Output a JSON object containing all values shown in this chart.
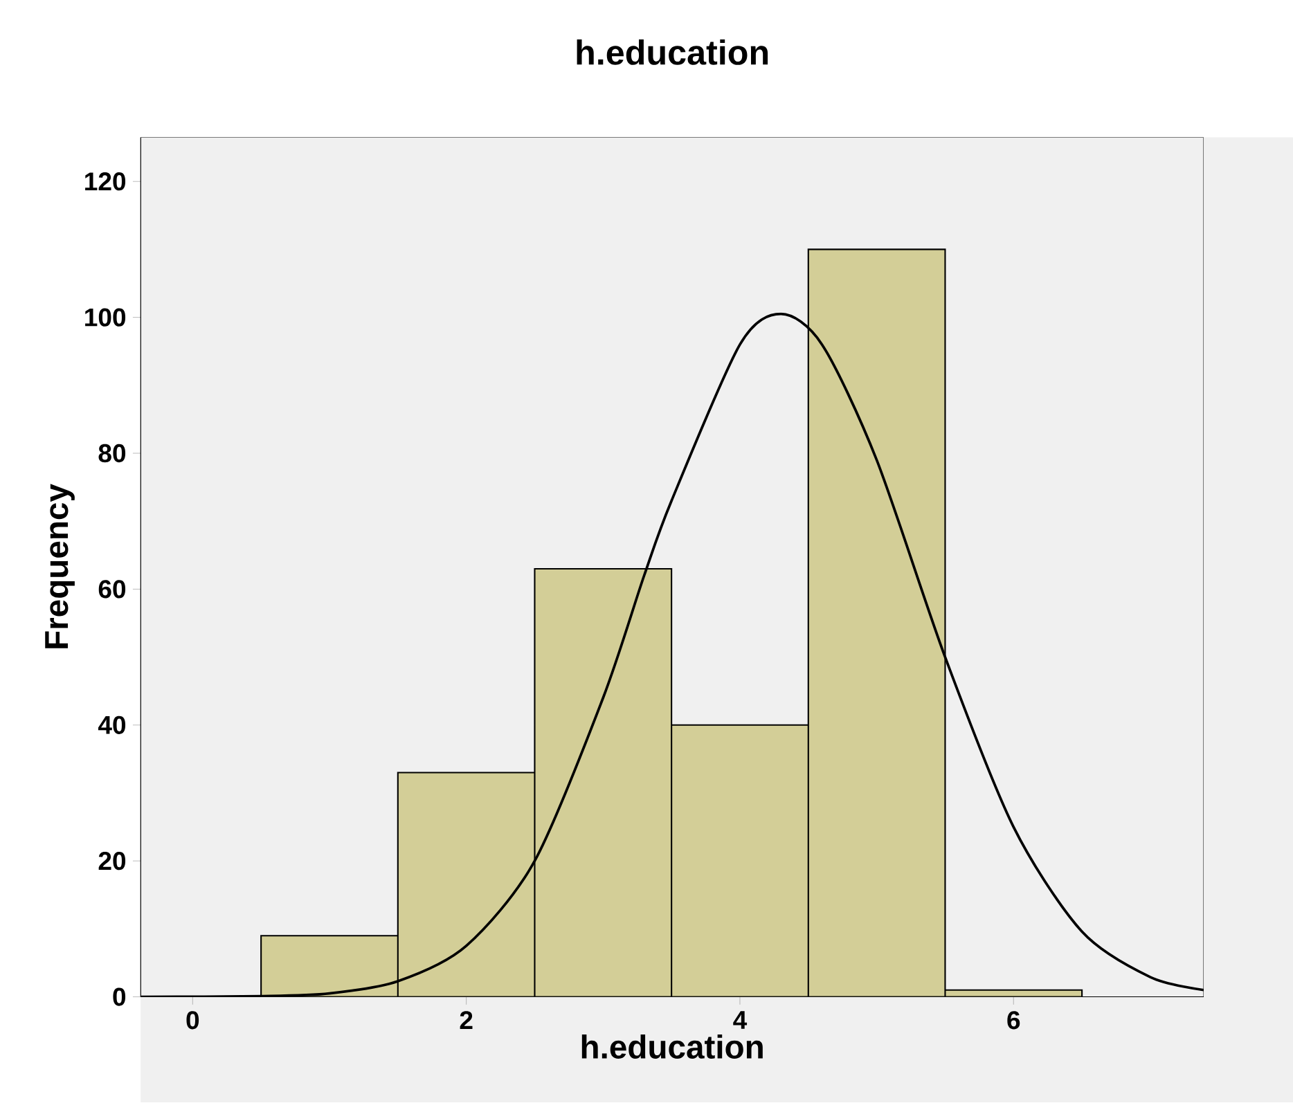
{
  "chart_data": {
    "type": "histogram",
    "title": "h.education",
    "xlabel": "h.education",
    "ylabel": "Frequency",
    "bins": [
      0.5,
      1.5,
      2.5,
      3.5,
      4.5,
      5.5,
      6.5
    ],
    "values": [
      9,
      33,
      63,
      40,
      110,
      1
    ],
    "color": "#d3ce97",
    "series": [
      {
        "type": "line",
        "color": "#000000",
        "x": [
          -0.38,
          0.5,
          1.0,
          1.5,
          2.0,
          2.5,
          3.0,
          3.3,
          3.5,
          4.0,
          4.3,
          4.6,
          5.0,
          5.5,
          6.0,
          6.5,
          7.0,
          7.39
        ],
        "values": [
          0,
          0.1,
          0.5,
          2.3,
          7.5,
          20,
          44,
          62,
          73,
          96,
          100.5,
          96,
          79,
          50,
          25,
          9.6,
          2.9,
          1
        ]
      }
    ],
    "xlim": [
      -0.38,
      7.39
    ],
    "ylim": [
      0,
      126.5
    ],
    "xticks": [
      0,
      2,
      4,
      6
    ],
    "yticks": [
      0,
      20,
      40,
      60,
      80,
      100,
      120
    ],
    "grid": false,
    "marker": "none"
  }
}
